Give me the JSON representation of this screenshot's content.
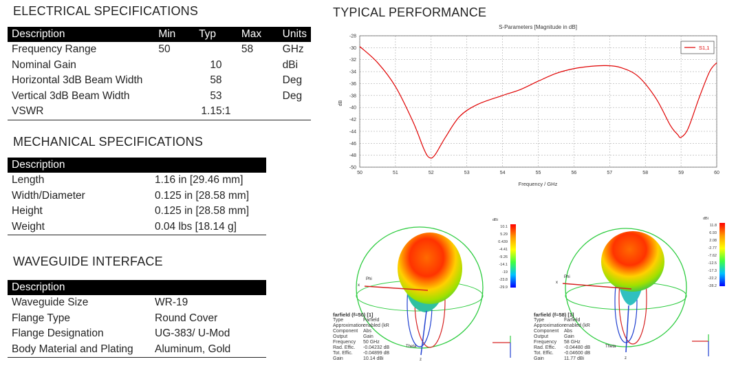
{
  "electrical": {
    "title": "ELECTRICAL SPECIFICATIONS",
    "headers": [
      "Description",
      "Min",
      "Typ",
      "Max",
      "Units"
    ],
    "rows": [
      [
        "Frequency Range",
        "50",
        "",
        "58",
        "GHz"
      ],
      [
        "Nominal Gain",
        "",
        "10",
        "",
        "dBi"
      ],
      [
        "Horizontal 3dB Beam Width",
        "",
        "58",
        "",
        "Deg"
      ],
      [
        "Vertical 3dB Beam Width",
        "",
        "53",
        "",
        "Deg"
      ],
      [
        "VSWR",
        "",
        "1.15:1",
        "",
        ""
      ]
    ]
  },
  "mechanical": {
    "title": "MECHANICAL SPECIFICATIONS",
    "header": "Description",
    "rows": [
      [
        "Length",
        "1.16 in [29.46 mm]"
      ],
      [
        "Width/Diameter",
        "0.125 in [28.58 mm]"
      ],
      [
        "Height",
        "0.125 in [28.58 mm]"
      ],
      [
        "Weight",
        "0.04 lbs [18.14 g]"
      ]
    ]
  },
  "waveguide": {
    "title": "WAVEGUIDE INTERFACE",
    "header": "Description",
    "rows": [
      [
        "Waveguide Size",
        "WR-19"
      ],
      [
        "Flange Type",
        "Round Cover"
      ],
      [
        "Flange Designation",
        "UG-383/ U-Mod"
      ],
      [
        "Body Material and Plating",
        "Aluminum, Gold"
      ]
    ]
  },
  "performance": {
    "title": "TYPICAL PERFORMANCE"
  },
  "chart_data": {
    "type": "line",
    "title": "S-Parameters [Magnitude in dB]",
    "xlabel": "Frequency / GHz",
    "ylabel": "dB",
    "xlim": [
      50,
      60
    ],
    "ylim": [
      -50,
      -28
    ],
    "xticks": [
      "50",
      "51",
      "52",
      "53",
      "54",
      "55",
      "56",
      "57",
      "58",
      "59",
      "60"
    ],
    "yticks": [
      "-28",
      "-30",
      "-32",
      "-34",
      "-36",
      "-38",
      "-40",
      "-42",
      "-44",
      "-46",
      "-48",
      "-50"
    ],
    "grid": true,
    "legend_position": "top-right",
    "line_color": "#e00000",
    "series": [
      {
        "name": "S1,1",
        "x": [
          50,
          50.5,
          51,
          51.5,
          51.8,
          51.95,
          52.1,
          52.4,
          52.8,
          53.3,
          54,
          54.5,
          55,
          55.5,
          56,
          56.5,
          56.9,
          57.3,
          57.8,
          58.3,
          58.7,
          58.9,
          59.0,
          59.2,
          59.5,
          59.8,
          60
        ],
        "y": [
          -29.8,
          -32.5,
          -36.5,
          -42.5,
          -47.0,
          -48.4,
          -48.0,
          -45.0,
          -41.5,
          -39.5,
          -38.0,
          -37.0,
          -35.6,
          -34.3,
          -33.5,
          -33.1,
          -33.0,
          -33.3,
          -34.8,
          -38.5,
          -43.0,
          -44.5,
          -45.0,
          -43.5,
          -38.5,
          -34.0,
          -32.5
        ]
      }
    ]
  },
  "farfield_left": {
    "scale_unit": "dBi",
    "scale": [
      "10.1",
      "5.29",
      "0.439",
      "-4.41",
      "-9.26",
      "-14.1",
      "-19",
      "-23.8",
      "-29.9"
    ],
    "axis_phi": "Phi",
    "axis_theta": "Theta",
    "axis_x": "x",
    "axis_z": "z",
    "header": "farfield (f=50) [1]",
    "info": [
      [
        "Type",
        "Farfield"
      ],
      [
        "Approximation",
        "enabled (kR"
      ],
      [
        "Component",
        "Abs"
      ],
      [
        "Output",
        "Gain"
      ],
      [
        "Frequency",
        "50 GHz"
      ],
      [
        "Rad. Effic.",
        "-0.04232 dB"
      ],
      [
        "Tot. Effic.",
        "-0.04899 dB"
      ],
      [
        "Gain",
        "10.14 dBi"
      ]
    ]
  },
  "farfield_right": {
    "scale_unit": "dBi",
    "scale": [
      "11.8",
      "6.93",
      "2.08",
      "-2.77",
      "-7.62",
      "-12.5",
      "-17.3",
      "-22.2",
      "-28.2"
    ],
    "axis_phi": "Phi",
    "axis_theta": "Theta",
    "axis_x": "x",
    "axis_z": "z",
    "header": "farfield (f=58) [1]",
    "info": [
      [
        "Type",
        "Farfield"
      ],
      [
        "Approximation",
        "enabled (kR"
      ],
      [
        "Component",
        "Abs"
      ],
      [
        "Output",
        "Gain"
      ],
      [
        "Frequency",
        "58 GHz"
      ],
      [
        "Rad. Effic.",
        "-0.04480 dB"
      ],
      [
        "Tot. Effic.",
        "-0.04600 dB"
      ],
      [
        "Gain",
        "11.77 dBi"
      ]
    ]
  }
}
